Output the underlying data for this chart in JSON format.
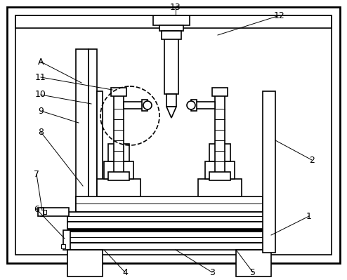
{
  "bg_color": "#ffffff",
  "line_color": "#000000",
  "lw_thick": 2.0,
  "lw_med": 1.2,
  "lw_thin": 0.7,
  "fig_width": 4.94,
  "fig_height": 3.99,
  "label_fontsize": 9
}
